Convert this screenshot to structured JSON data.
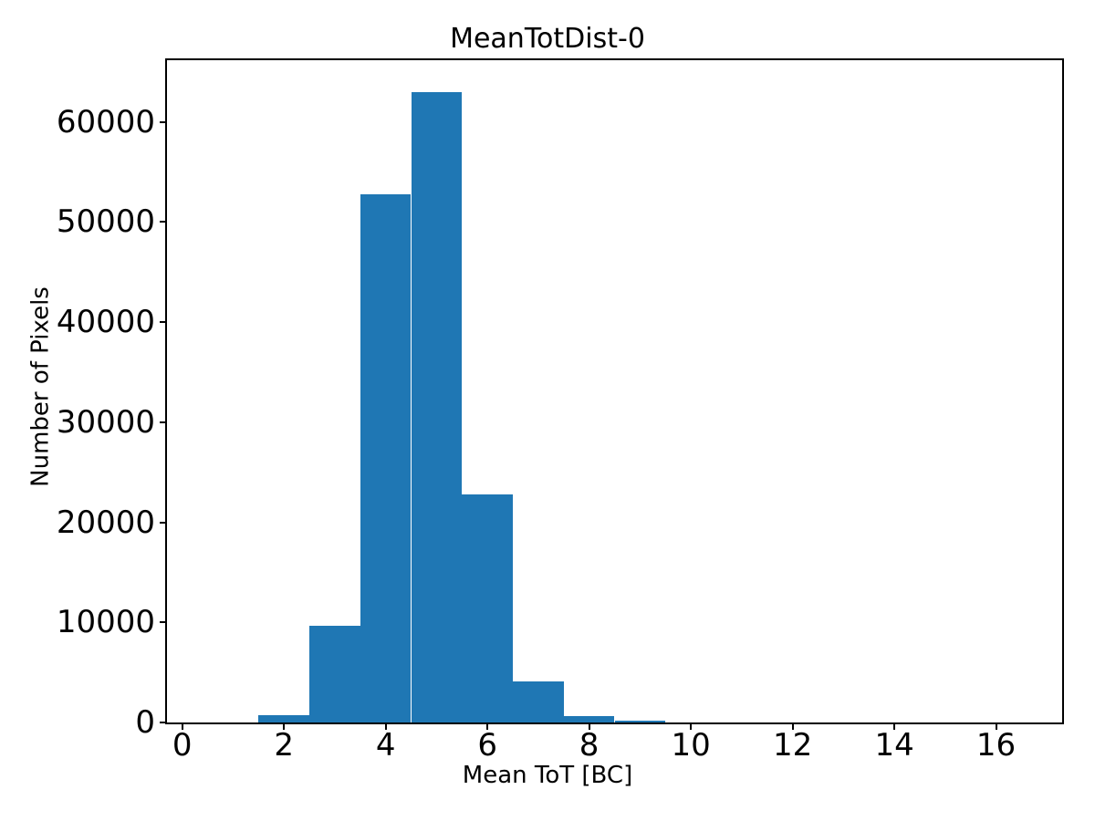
{
  "figure": {
    "title": "MeanTotDist-0",
    "xlabel": "Mean ToT [BC]",
    "ylabel": "Number of Pixels"
  },
  "chart_data": {
    "type": "bar",
    "subtype": "histogram",
    "title": "MeanTotDist-0",
    "xlabel": "Mean ToT [BC]",
    "ylabel": "Number of Pixels",
    "bar_color": "#1f77b4",
    "axis_color": "#000000",
    "background_color": "#ffffff",
    "grid": false,
    "legend": null,
    "bin_width": 1,
    "bin_edges": [
      0.5,
      1.5,
      2.5,
      3.5,
      4.5,
      5.5,
      6.5,
      7.5,
      8.5,
      9.5,
      10.5,
      11.5,
      12.5,
      13.5,
      14.5,
      15.5,
      16.5
    ],
    "counts": [
      0,
      750,
      9700,
      52800,
      63000,
      22800,
      4100,
      620,
      150,
      0,
      0,
      0,
      0,
      0,
      0,
      0
    ],
    "xticks": [
      0,
      2,
      4,
      6,
      8,
      10,
      12,
      14,
      16
    ],
    "yticks": [
      0,
      10000,
      20000,
      30000,
      40000,
      50000,
      60000
    ],
    "xlim": [
      -0.3,
      17.3
    ],
    "ylim": [
      0,
      66150
    ]
  },
  "layout_note_values": {
    "peak_bin_center": 5,
    "peak_count": 63000
  }
}
